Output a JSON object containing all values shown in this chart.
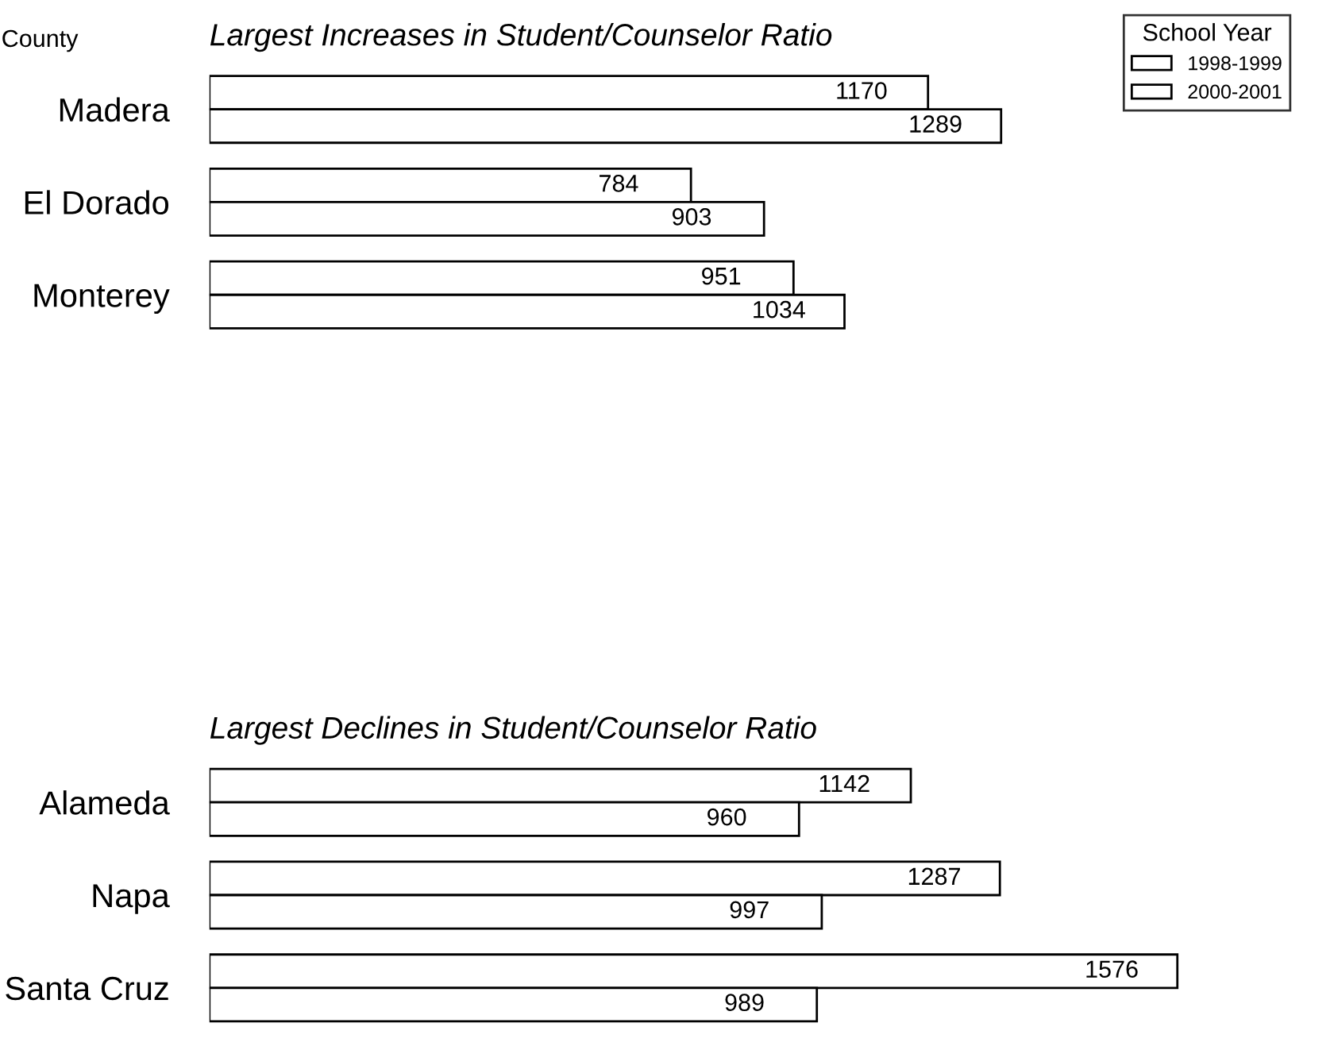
{
  "chart_data": [
    {
      "type": "bar",
      "orientation": "horizontal",
      "title": "Largest Increases in Student/Counselor Ratio",
      "ylabel": "County",
      "legend_title": "School Year",
      "legend": "top right",
      "data_labels": true,
      "categories": [
        "Madera",
        "El Dorado",
        "Monterey"
      ],
      "series": [
        {
          "name": "1998-1999",
          "color": "#ffffff",
          "values": [
            1170,
            784,
            951
          ]
        },
        {
          "name": "2000-2001",
          "color": "#ffffff",
          "values": [
            1289,
            903,
            1034
          ]
        }
      ]
    },
    {
      "type": "bar",
      "orientation": "horizontal",
      "title": "Largest Declines in Student/Counselor Ratio",
      "data_labels": true,
      "categories": [
        "Alameda",
        "Napa",
        "Santa Cruz"
      ],
      "series": [
        {
          "color": "#ffffff",
          "values": [
            1142,
            1287,
            1576
          ]
        },
        {
          "color": "#ffffff",
          "values": [
            960,
            997,
            989
          ]
        }
      ]
    }
  ]
}
